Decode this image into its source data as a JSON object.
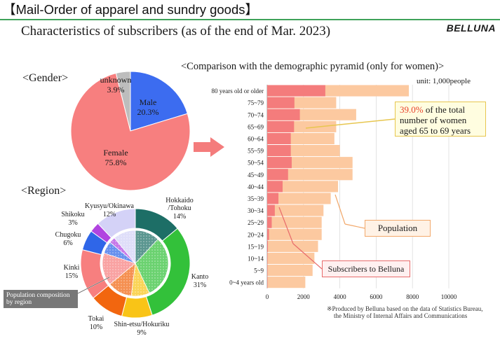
{
  "header": {
    "title": "【Mail-Order of apparel and sundry goods】",
    "subtitle": "Characteristics of subscribers (as of the end of Mar. 2023)",
    "brand": "BELLUNA"
  },
  "sections": {
    "gender": "<Gender>",
    "region": "<Region>",
    "pyramid": "<Comparison with the demographic pyramid (only for women)>",
    "unit": "unit: 1,000people"
  },
  "callouts": {
    "highlight_pct": "39.0%",
    "highlight_rest": " of the total",
    "highlight_line2": "number of women",
    "highlight_line3": "aged 65 to 69 years",
    "population": "Population",
    "subscribers": "Subscribers to Belluna",
    "region_inner": "Population composition by region"
  },
  "footnote": {
    "line1": "※Produced by Belluna based on the data of Statistics Bureau,",
    "line2": "the Ministry of Internal Affairs and Communications"
  },
  "colors": {
    "accent_green": "#3fa35a",
    "male": "#3c6cf0",
    "female": "#f77f7f",
    "unknown": "#bdbdbd",
    "population_bar": "#fcc9a0",
    "subscriber_bar": "#f47c7c",
    "arrow": "#f47c7c"
  },
  "chart_data": [
    {
      "type": "pie",
      "slices": [
        {
          "label": "Male",
          "pct_label": "20.3%",
          "value": 20.3,
          "color": "#3c6cf0"
        },
        {
          "label": "Female",
          "pct_label": "75.8%",
          "value": 75.8,
          "color": "#f77f7f"
        },
        {
          "label": "unknown",
          "pct_label": "3.9%",
          "value": 3.9,
          "color": "#bdbdbd"
        }
      ]
    },
    {
      "type": "pie",
      "slices": [
        {
          "label": "Hokkaido\n/Tohoku",
          "pct_label": "14%",
          "value": 14,
          "color": "#1d6e66"
        },
        {
          "label": "Kanto",
          "pct_label": "31%",
          "value": 31,
          "color": "#33c13a"
        },
        {
          "label": "Shin-etsu/Hokuriku",
          "pct_label": "9%",
          "value": 9,
          "color": "#f9c417"
        },
        {
          "label": "Tokai",
          "pct_label": "10%",
          "value": 10,
          "color": "#f2660f"
        },
        {
          "label": "Kinki",
          "pct_label": "15%",
          "value": 15,
          "color": "#f77f7f"
        },
        {
          "label": "Chugoku",
          "pct_label": "6%",
          "value": 6,
          "color": "#2f66e8"
        },
        {
          "label": "Shikoku",
          "pct_label": "3%",
          "value": 3,
          "color": "#b144e0"
        },
        {
          "label": "Kyusyu/Okinawa",
          "pct_label": "12%",
          "value": 12,
          "color": "#d4d2f7"
        }
      ],
      "inner_ring": [
        12,
        31,
        9,
        12,
        16,
        6,
        3,
        11
      ]
    },
    {
      "type": "bar",
      "orientation": "horizontal",
      "categories": [
        "80 years old or older",
        "75~79",
        "70~74",
        "65~69",
        "60~64",
        "55~59",
        "50~54",
        "45~49",
        "40~44",
        "35~39",
        "30~34",
        "25~29",
        "20~24",
        "15~19",
        "10~14",
        "5~9",
        "0~4 years old"
      ],
      "series": [
        {
          "name": "Population",
          "values": [
            7800,
            3800,
            4900,
            3800,
            3700,
            4000,
            4700,
            4700,
            3900,
            3500,
            3100,
            3000,
            3000,
            2800,
            2600,
            2500,
            2100
          ]
        },
        {
          "name": "Subscribers to Belluna",
          "values": [
            3200,
            1500,
            1800,
            1480,
            1300,
            1300,
            1350,
            1150,
            850,
            620,
            420,
            250,
            100,
            40,
            20,
            10,
            10
          ]
        }
      ],
      "x_ticks": [
        "0",
        "2000",
        "4000",
        "6000",
        "8000",
        "10000"
      ],
      "xlim": [
        0,
        10000
      ]
    }
  ]
}
